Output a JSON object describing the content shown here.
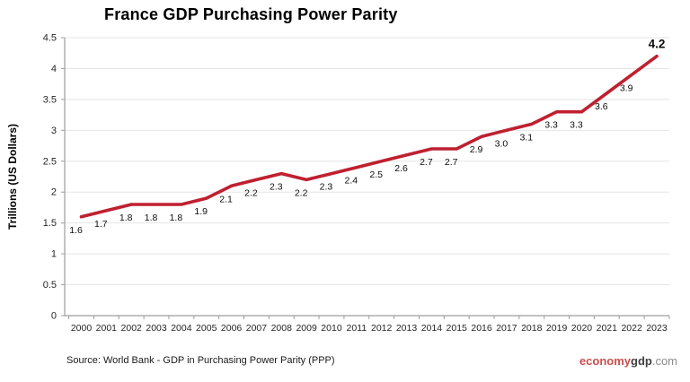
{
  "title": "France GDP Purchasing Power Parity",
  "y_axis_title": "Trillions (US Dollars)",
  "source_text": "Source: World Bank -  GDP in Purchasing Power Parity (PPP)",
  "logo": {
    "economy": "economy",
    "gdp": "gdp",
    "domain": ".com"
  },
  "colors": {
    "line": "#bf2030",
    "grid": "#e5e5e5",
    "axis": "#9d9d9d",
    "tick_label": "#262626",
    "data_label": "#0d0d0d",
    "logo_red": "#c9504e",
    "logo_dark": "#404040",
    "logo_gray": "#8c8c8c"
  },
  "chart_data": {
    "type": "line",
    "title": "France GDP Purchasing Power Parity",
    "xlabel": "",
    "ylabel": "Trillions (US Dollars)",
    "x": [
      2000,
      2001,
      2002,
      2003,
      2004,
      2005,
      2006,
      2007,
      2008,
      2009,
      2010,
      2011,
      2012,
      2013,
      2014,
      2015,
      2016,
      2017,
      2018,
      2019,
      2020,
      2021,
      2022,
      2023
    ],
    "values": [
      1.6,
      1.7,
      1.8,
      1.8,
      1.8,
      1.9,
      2.1,
      2.2,
      2.3,
      2.2,
      2.3,
      2.4,
      2.5,
      2.6,
      2.7,
      2.7,
      2.9,
      3.0,
      3.1,
      3.3,
      3.3,
      3.6,
      3.9,
      4.2
    ],
    "point_labels": [
      "1.6",
      "1.7",
      "1.8",
      "1.8",
      "1.8",
      "1.9",
      "2.1",
      "2.2",
      "2.3",
      "2.2",
      "2.3",
      "2.4",
      "2.5",
      "2.6",
      "2.7",
      "2.7",
      "2.9",
      "3.0",
      "3.1",
      "3.3",
      "3.3",
      "3.6",
      "3.9",
      "4.2"
    ],
    "ylim": [
      0,
      4.5
    ],
    "ytick_step": 0.5,
    "grid": true,
    "legend": "none",
    "last_label_bold": true,
    "series_name": "France GDP (PPP)"
  }
}
